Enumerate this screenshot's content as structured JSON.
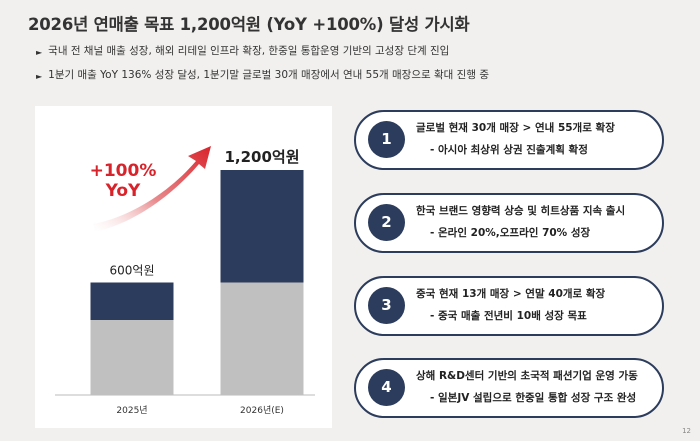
{
  "title": "2026년 연매출 목표 1,200억원 (YoY +100%) 달성 가시화",
  "bullets": [
    "국내 전 채널 매출 성장, 해외 리테일 인프라 확장, 한중일 통합운영 기반의 고성장 단계 진입",
    "1분기 매출 YoY 136% 성장 달성, 1분기말 글로벌 30개 매장에서 연내 55개 매장으로 확대 진행 중"
  ],
  "growth_label": {
    "line1": "+100%",
    "line2": "YoY"
  },
  "chart_data": {
    "type": "bar",
    "stacked": true,
    "categories": [
      "2025년",
      "2026년(E)"
    ],
    "totals": [
      600,
      1200
    ],
    "total_labels": [
      "600억원",
      "1,200억원"
    ],
    "series": [
      {
        "values": [
          400,
          600
        ]
      },
      {
        "values": [
          200,
          600
        ]
      }
    ],
    "colors": [
      "#c0c0c0",
      "#2c3c5c"
    ],
    "ylim": [
      0,
      1200
    ]
  },
  "items": [
    {
      "number": "1",
      "line1": "글로벌 현재 30개 매장 > 연내 55개로 확장",
      "line2": "- 아시아 최상위 상권 진출계획 확정"
    },
    {
      "number": "2",
      "line1": "한국 브랜드 영향력 상승 및 히트상품 지속 출시",
      "line2": "- 온라인 20%,오프라인 70% 성장"
    },
    {
      "number": "3",
      "line1": "중국 현재 13개 매장 > 연말 40개로 확장",
      "line2": "- 중국 매출 전년비 10배 성장 목표"
    },
    {
      "number": "4",
      "line1": "상해 R&D센터 기반의 초국적 패션기업 운영 가동",
      "line2": "- 일본JV 설립으로 한중일 통합 성장 구조 완성"
    }
  ],
  "page_number": "12",
  "colors": {
    "navy": "#2c3c5c",
    "gray": "#c0c0c0",
    "accent_red": "#d9232b"
  }
}
